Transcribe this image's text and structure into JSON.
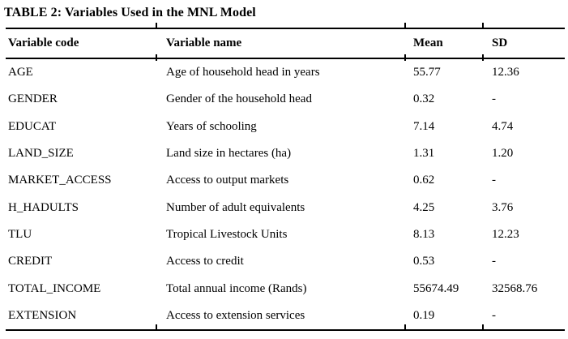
{
  "table": {
    "title": "TABLE 2: Variables Used in the MNL Model",
    "columns": [
      "Variable code",
      "Variable name",
      "Mean",
      "SD"
    ],
    "rows": [
      {
        "code": "AGE",
        "name": "Age of household head in years",
        "mean": "55.77",
        "sd": "12.36"
      },
      {
        "code": "GENDER",
        "name": "Gender of the household head",
        "mean": "0.32",
        "sd": "-"
      },
      {
        "code": "EDUCAT",
        "name": "Years of schooling",
        "mean": "7.14",
        "sd": "4.74"
      },
      {
        "code": "LAND_SIZE",
        "name": "Land size in hectares (ha)",
        "mean": "1.31",
        "sd": "1.20"
      },
      {
        "code": "MARKET_ACCESS",
        "name": "Access to output markets",
        "mean": "0.62",
        "sd": "-"
      },
      {
        "code": "H_HADULTS",
        "name": "Number of adult equivalents",
        "mean": "4.25",
        "sd": "3.76"
      },
      {
        "code": "TLU",
        "name": "Tropical Livestock Units",
        "mean": "8.13",
        "sd": "12.23"
      },
      {
        "code": "CREDIT",
        "name": "Access to credit",
        "mean": "0.53",
        "sd": "-"
      },
      {
        "code": "TOTAL_INCOME",
        "name": "Total annual income (Rands)",
        "mean": "55674.49",
        "sd": "32568.76"
      },
      {
        "code": "EXTENSION",
        "name": "Access to extension services",
        "mean": "0.19",
        "sd": "-"
      }
    ],
    "colors": {
      "text": "#000000",
      "background": "#ffffff",
      "rule": "#000000"
    }
  }
}
